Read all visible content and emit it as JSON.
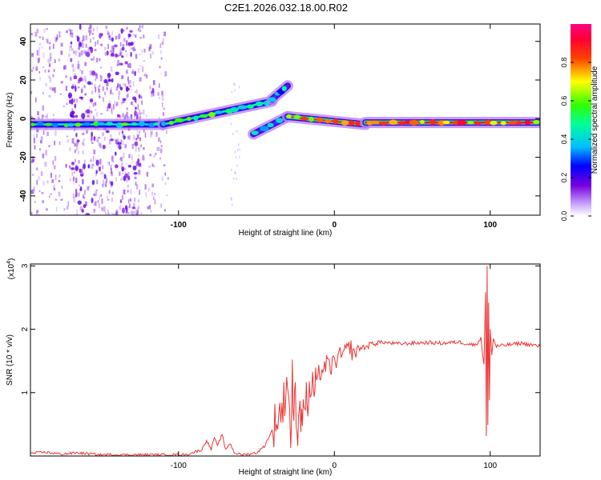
{
  "title": "C2E1.2026.032.18.00.R02",
  "chart_data": [
    {
      "type": "heatmap",
      "name": "spectrogram",
      "xlabel": "Height of straight line (km)",
      "ylabel": "Frequency (Hz)",
      "xlim": [
        -195,
        132
      ],
      "ylim": [
        -50,
        49
      ],
      "xticks": [
        -100,
        0,
        100
      ],
      "yticks": [
        -40,
        -20,
        0,
        20,
        40
      ],
      "colorbar": {
        "label": "Normalized spectral amplitude",
        "range": [
          0,
          1
        ],
        "ticks": [
          "0.0",
          "0.2",
          "0.4",
          "0.6",
          "0.8"
        ],
        "tick_values": [
          0.0,
          0.2,
          0.4,
          0.6,
          0.8
        ]
      },
      "ridge_segments": [
        {
          "x": [
            -195,
            -110
          ],
          "freq": [
            -3,
            -3
          ],
          "amplitude": 0.45
        },
        {
          "x": [
            -110,
            -40
          ],
          "freq": [
            -3,
            9
          ],
          "amplitude": 0.5
        },
        {
          "x": [
            -40,
            -30
          ],
          "freq": [
            10,
            17
          ],
          "amplitude": 0.3
        },
        {
          "x": [
            -52,
            -30
          ],
          "freq": [
            -8,
            1
          ],
          "amplitude": 0.3
        },
        {
          "x": [
            -30,
            20
          ],
          "freq": [
            1,
            -3
          ],
          "amplitude": 0.85
        },
        {
          "x": [
            20,
            132
          ],
          "freq": [
            -2,
            -2
          ],
          "amplitude": 0.9
        }
      ]
    },
    {
      "type": "line",
      "name": "snr",
      "xlabel": "Height of straight line (km)",
      "ylabel": "SNR (10 * v/v)",
      "yscale_label": "(x10",
      "yscale_exponent": "4",
      "yscale_suffix": ")",
      "xlim": [
        -195,
        132
      ],
      "ylim": [
        0,
        3.03
      ],
      "xticks": [
        -100,
        0,
        100
      ],
      "yticks": [
        1,
        2,
        3
      ],
      "color": "#ee3333",
      "series": [
        {
          "name": "SNR",
          "x": [
            -195,
            -185,
            -175,
            -165,
            -150,
            -130,
            -110,
            -95,
            -85,
            -82,
            -79,
            -77,
            -75,
            -72,
            -70,
            -67,
            -64,
            -60,
            -55,
            -50,
            -45,
            -40,
            -37,
            -33,
            -30,
            -28,
            -27,
            -26,
            -25,
            -24,
            -23,
            -22,
            -21,
            -20,
            -19,
            -18,
            -17,
            -16,
            -15,
            -14,
            -13,
            -12,
            -11,
            -10,
            -8,
            -5,
            -2,
            0,
            3,
            5,
            8,
            10,
            12,
            15,
            20,
            25,
            30,
            40,
            50,
            60,
            70,
            80,
            90,
            94,
            96,
            97,
            97.5,
            98,
            98.5,
            99,
            99.5,
            100,
            101,
            102,
            104,
            110,
            120,
            132
          ],
          "y": [
            0.04,
            0.06,
            0.03,
            0.05,
            0.02,
            0.02,
            0.02,
            0.02,
            0.1,
            0.25,
            0.1,
            0.3,
            0.15,
            0.35,
            0.1,
            0.2,
            0.05,
            0.02,
            0.03,
            0.05,
            0.15,
            0.4,
            0.6,
            0.75,
            1.3,
            0.2,
            1.4,
            0.3,
            1.2,
            0.1,
            0.9,
            0.8,
            0.5,
            1.0,
            0.6,
            1.05,
            0.7,
            1.1,
            0.9,
            1.2,
            0.95,
            1.25,
            1.1,
            1.3,
            1.35,
            1.45,
            1.4,
            1.5,
            1.55,
            1.6,
            1.65,
            1.75,
            1.6,
            1.7,
            1.72,
            1.78,
            1.8,
            1.77,
            1.78,
            1.79,
            1.78,
            1.8,
            1.75,
            1.85,
            1.45,
            2.6,
            0.3,
            3.0,
            0.5,
            2.4,
            0.9,
            2.0,
            1.6,
            1.85,
            1.73,
            1.75,
            1.78,
            1.73
          ]
        }
      ]
    }
  ]
}
